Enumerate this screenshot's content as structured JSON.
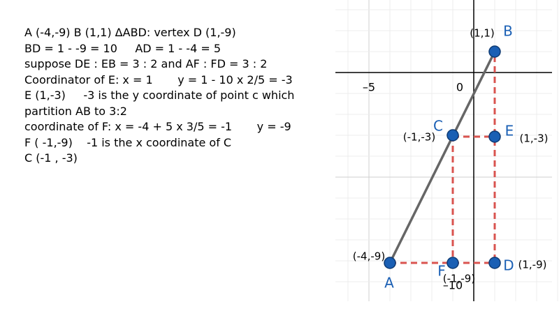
{
  "text_lines": [
    "A (-4,-9) B (1,1) ΔABD: vertex D (1,-9)",
    "BD = 1 - -9 = 10     AD = 1 - -4 = 5",
    "suppose DE : EB = 3 : 2 and AF : FD = 3 : 2",
    "Coordinator of E: x = 1       y = 1 - 10 x 2/5 = -3",
    "E (1,-3)     -3 is the y coordinate of point c which",
    "partition AB to 3:2",
    "coordinate of F: x = -4 + 5 x 3/5 = -1       y = -9",
    "F ( -1,-9)    -1 is the x coordinate of C",
    "C (-1 , -3)"
  ],
  "graph": {
    "axis_labels": [
      "–5",
      "0",
      "–10"
    ],
    "points": [
      {
        "name": "A",
        "coords": "(-4,-9)"
      },
      {
        "name": "B",
        "coords": "(1,1)"
      },
      {
        "name": "C",
        "coords": "(-1,-3)"
      },
      {
        "name": "E",
        "coords": "(1,-3)"
      },
      {
        "name": "D",
        "coords": "(1,-9)"
      },
      {
        "name": "F",
        "coords": "(-1,-9)"
      }
    ]
  }
}
